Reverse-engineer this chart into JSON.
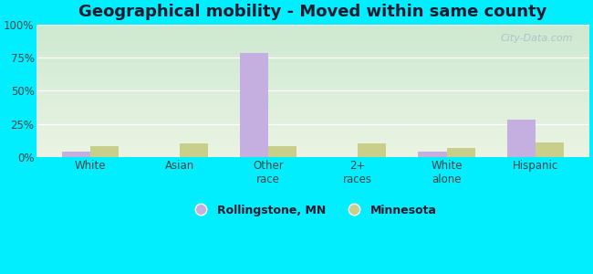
{
  "title": "Geographical mobility - Moved within same county",
  "categories": [
    "White",
    "Asian",
    "Other\nrace",
    "2+\nraces",
    "White\nalone",
    "Hispanic"
  ],
  "rollingstone": [
    4.0,
    0.0,
    78.0,
    0.0,
    4.0,
    28.0
  ],
  "minnesota": [
    8.0,
    10.0,
    8.0,
    10.0,
    7.0,
    11.0
  ],
  "rollingstone_color": "#c5aee0",
  "minnesota_color": "#c8cf8a",
  "outer_background": "#00eeff",
  "plot_bg_top": "#cde8d0",
  "plot_bg_bottom": "#eaf4e2",
  "ylabel_ticks": [
    "0%",
    "25%",
    "50%",
    "75%",
    "100%"
  ],
  "ytick_vals": [
    0,
    25,
    50,
    75,
    100
  ],
  "ylim": [
    0,
    100
  ],
  "bar_width": 0.32,
  "legend_labels": [
    "Rollingstone, MN",
    "Minnesota"
  ],
  "watermark": "City-Data.com",
  "title_fontsize": 13,
  "tick_fontsize": 8.5,
  "title_color": "#1a1a2e"
}
